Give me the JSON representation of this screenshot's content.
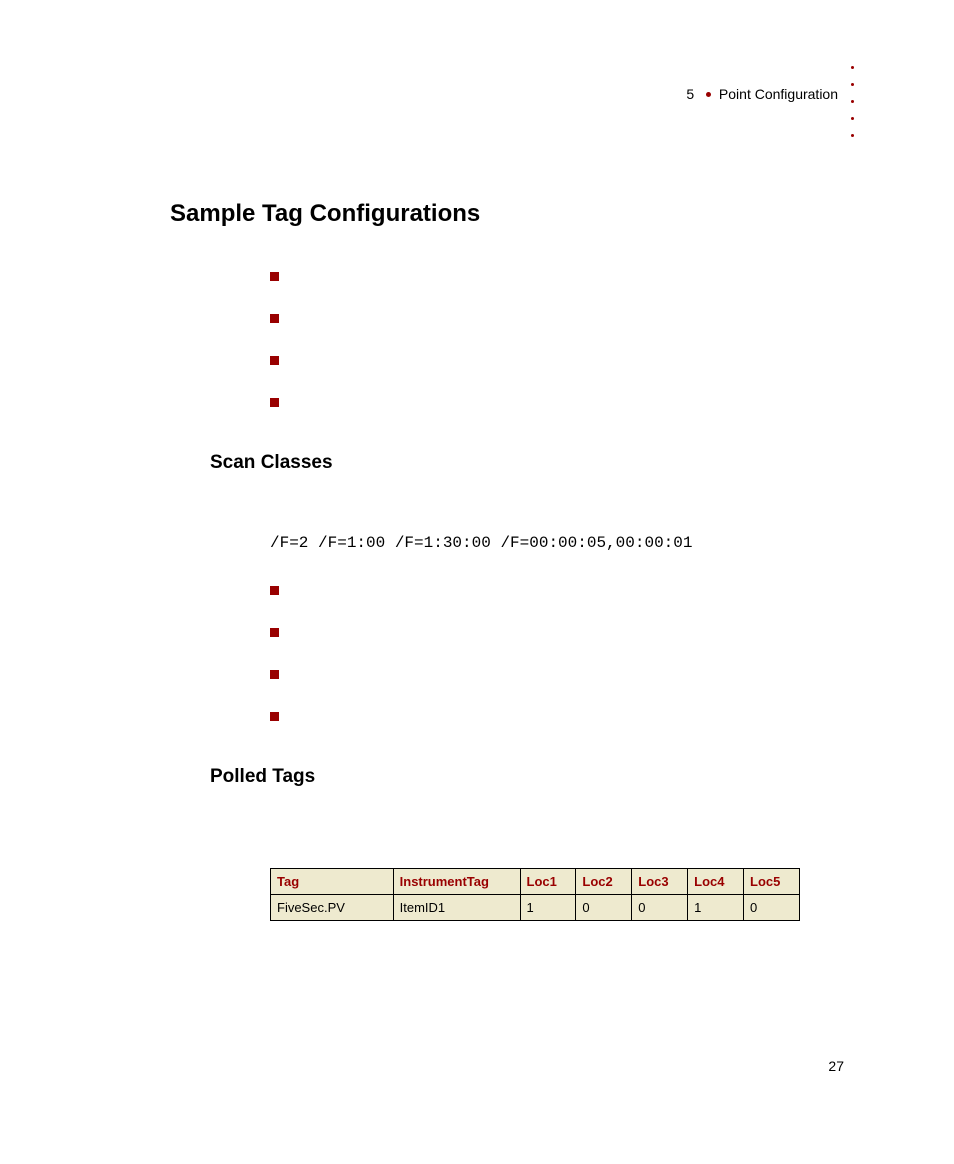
{
  "header": {
    "chapter_number": "5",
    "chapter_title": "Point Configuration",
    "side_dot_count": 5,
    "dot_color": "#990000"
  },
  "page_number": "27",
  "section_title": "Sample Tag Configurations",
  "top_bullets": [
    "",
    "",
    "",
    ""
  ],
  "subsection_scan_classes": {
    "title": "Scan Classes",
    "code_line": "/F=2 /F=1:00 /F=1:30:00 /F=00:00:05,00:00:01",
    "bullets": [
      "",
      "",
      "",
      ""
    ]
  },
  "subsection_polled_tags": {
    "title": "Polled Tags"
  },
  "table": {
    "columns": [
      "Tag",
      "InstrumentTag",
      "Loc1",
      "Loc2",
      "Loc3",
      "Loc4",
      "Loc5"
    ],
    "rows": [
      [
        "FiveSec.PV",
        "ItemID1",
        "1",
        "0",
        "0",
        "1",
        "0"
      ]
    ],
    "header_bg": "#eeeacf",
    "header_fg": "#990000",
    "cell_bg": "#eeeacf",
    "border_color": "#000000"
  },
  "bullet_color": "#990000"
}
